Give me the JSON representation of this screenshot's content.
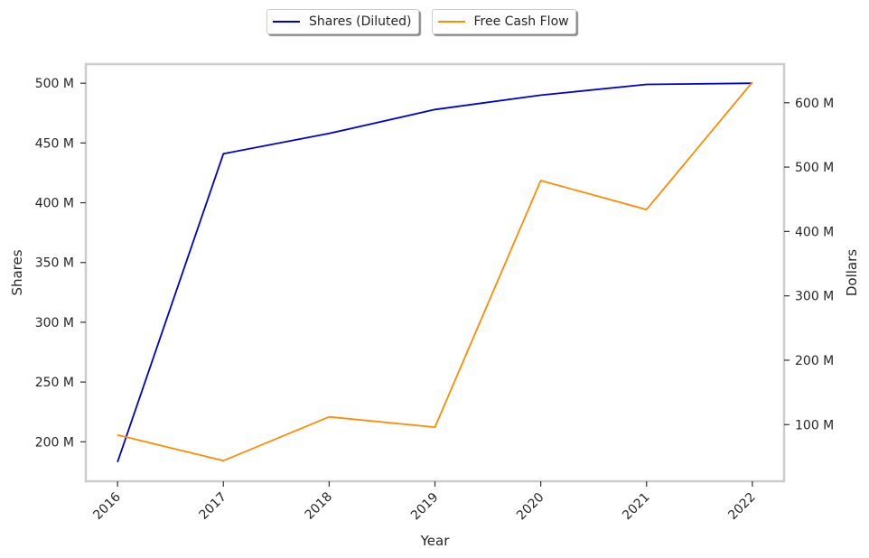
{
  "chart_data": {
    "type": "line",
    "x": [
      2016,
      2017,
      2018,
      2019,
      2020,
      2021,
      2022
    ],
    "xlabel": "Year",
    "ylabel_left": "Shares",
    "ylabel_right": "Dollars",
    "xlim": [
      2015.7,
      2022.3
    ],
    "ylim_left": [
      167000000,
      516000000
    ],
    "ylim_right": [
      12000000,
      660000000
    ],
    "yticks_left": [
      {
        "value": 200000000,
        "label": "200 M"
      },
      {
        "value": 250000000,
        "label": "250 M"
      },
      {
        "value": 300000000,
        "label": "300 M"
      },
      {
        "value": 350000000,
        "label": "350 M"
      },
      {
        "value": 400000000,
        "label": "400 M"
      },
      {
        "value": 450000000,
        "label": "450 M"
      },
      {
        "value": 500000000,
        "label": "500 M"
      }
    ],
    "yticks_right": [
      {
        "value": 100000000,
        "label": "100 M"
      },
      {
        "value": 200000000,
        "label": "200 M"
      },
      {
        "value": 300000000,
        "label": "300 M"
      },
      {
        "value": 400000000,
        "label": "400 M"
      },
      {
        "value": 500000000,
        "label": "500 M"
      },
      {
        "value": 600000000,
        "label": "600 M"
      }
    ],
    "xtick_labels": [
      "2016",
      "2017",
      "2018",
      "2019",
      "2020",
      "2021",
      "2022"
    ],
    "series": [
      {
        "name": "Shares (Diluted)",
        "axis": "left",
        "color": "#0000cd",
        "values": [
          183000000,
          441000000,
          458000000,
          478000000,
          490000000,
          499000000,
          500000000
        ]
      },
      {
        "name": "Free Cash Flow",
        "axis": "right",
        "color": "#ff8c00",
        "values": [
          84000000,
          44000000,
          112000000,
          96000000,
          479000000,
          434000000,
          632000000
        ]
      }
    ],
    "grid": false,
    "legend_position": "top-center"
  },
  "legend": {
    "items": [
      {
        "label": "Shares (Diluted)",
        "color": "#0000cd"
      },
      {
        "label": "Free Cash Flow",
        "color": "#ff8c00"
      }
    ]
  }
}
